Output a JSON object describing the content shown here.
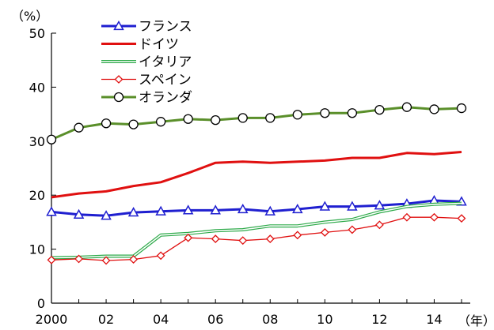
{
  "chart_data": {
    "type": "line",
    "y_unit": "（%）",
    "x_unit": "（年）",
    "x": [
      2000,
      2001,
      2002,
      2003,
      2004,
      2005,
      2006,
      2007,
      2008,
      2009,
      2010,
      2011,
      2012,
      2013,
      2014,
      2015
    ],
    "x_tick_labels": [
      "2000",
      "02",
      "04",
      "06",
      "08",
      "10",
      "12",
      "14"
    ],
    "x_tick_values": [
      2000,
      2002,
      2004,
      2006,
      2008,
      2010,
      2012,
      2014
    ],
    "y_ticks": [
      0,
      10,
      20,
      30,
      40,
      50
    ],
    "ylim": [
      0,
      50
    ],
    "xlim": [
      2000,
      2015
    ],
    "grid": false,
    "legend_position": "top-left",
    "series": [
      {
        "name": "フランス",
        "color": "#1f1fd0",
        "style": "thick",
        "marker": "triangle",
        "values": [
          16.9,
          16.4,
          16.2,
          16.8,
          17.0,
          17.2,
          17.2,
          17.4,
          17.0,
          17.4,
          17.9,
          17.9,
          18.1,
          18.4,
          19.0,
          18.8
        ]
      },
      {
        "name": "ドイツ",
        "color": "#e01010",
        "style": "thick",
        "marker": "none",
        "values": [
          19.6,
          20.3,
          20.7,
          21.7,
          22.4,
          24.1,
          26.0,
          26.2,
          26.0,
          26.2,
          26.4,
          26.9,
          26.9,
          27.8,
          27.6,
          28.0
        ]
      },
      {
        "name": "イタリア",
        "color": "#2eaa4a",
        "style": "double",
        "marker": "none",
        "values": [
          8.4,
          8.5,
          8.7,
          8.7,
          12.6,
          12.9,
          13.4,
          13.6,
          14.3,
          14.3,
          15.0,
          15.5,
          16.9,
          17.9,
          18.3,
          18.5
        ]
      },
      {
        "name": "スペイン",
        "color": "#e01010",
        "style": "thin",
        "marker": "diamond",
        "values": [
          8.0,
          8.2,
          7.9,
          8.1,
          8.8,
          12.1,
          11.9,
          11.6,
          11.9,
          12.6,
          13.1,
          13.6,
          14.5,
          15.9,
          15.9,
          15.7
        ]
      },
      {
        "name": "オランダ",
        "color": "#5a8f2a",
        "style": "thick",
        "marker": "circle",
        "values": [
          30.3,
          32.5,
          33.3,
          33.1,
          33.6,
          34.1,
          33.9,
          34.3,
          34.3,
          34.9,
          35.2,
          35.2,
          35.8,
          36.3,
          35.9,
          36.1
        ]
      }
    ]
  }
}
